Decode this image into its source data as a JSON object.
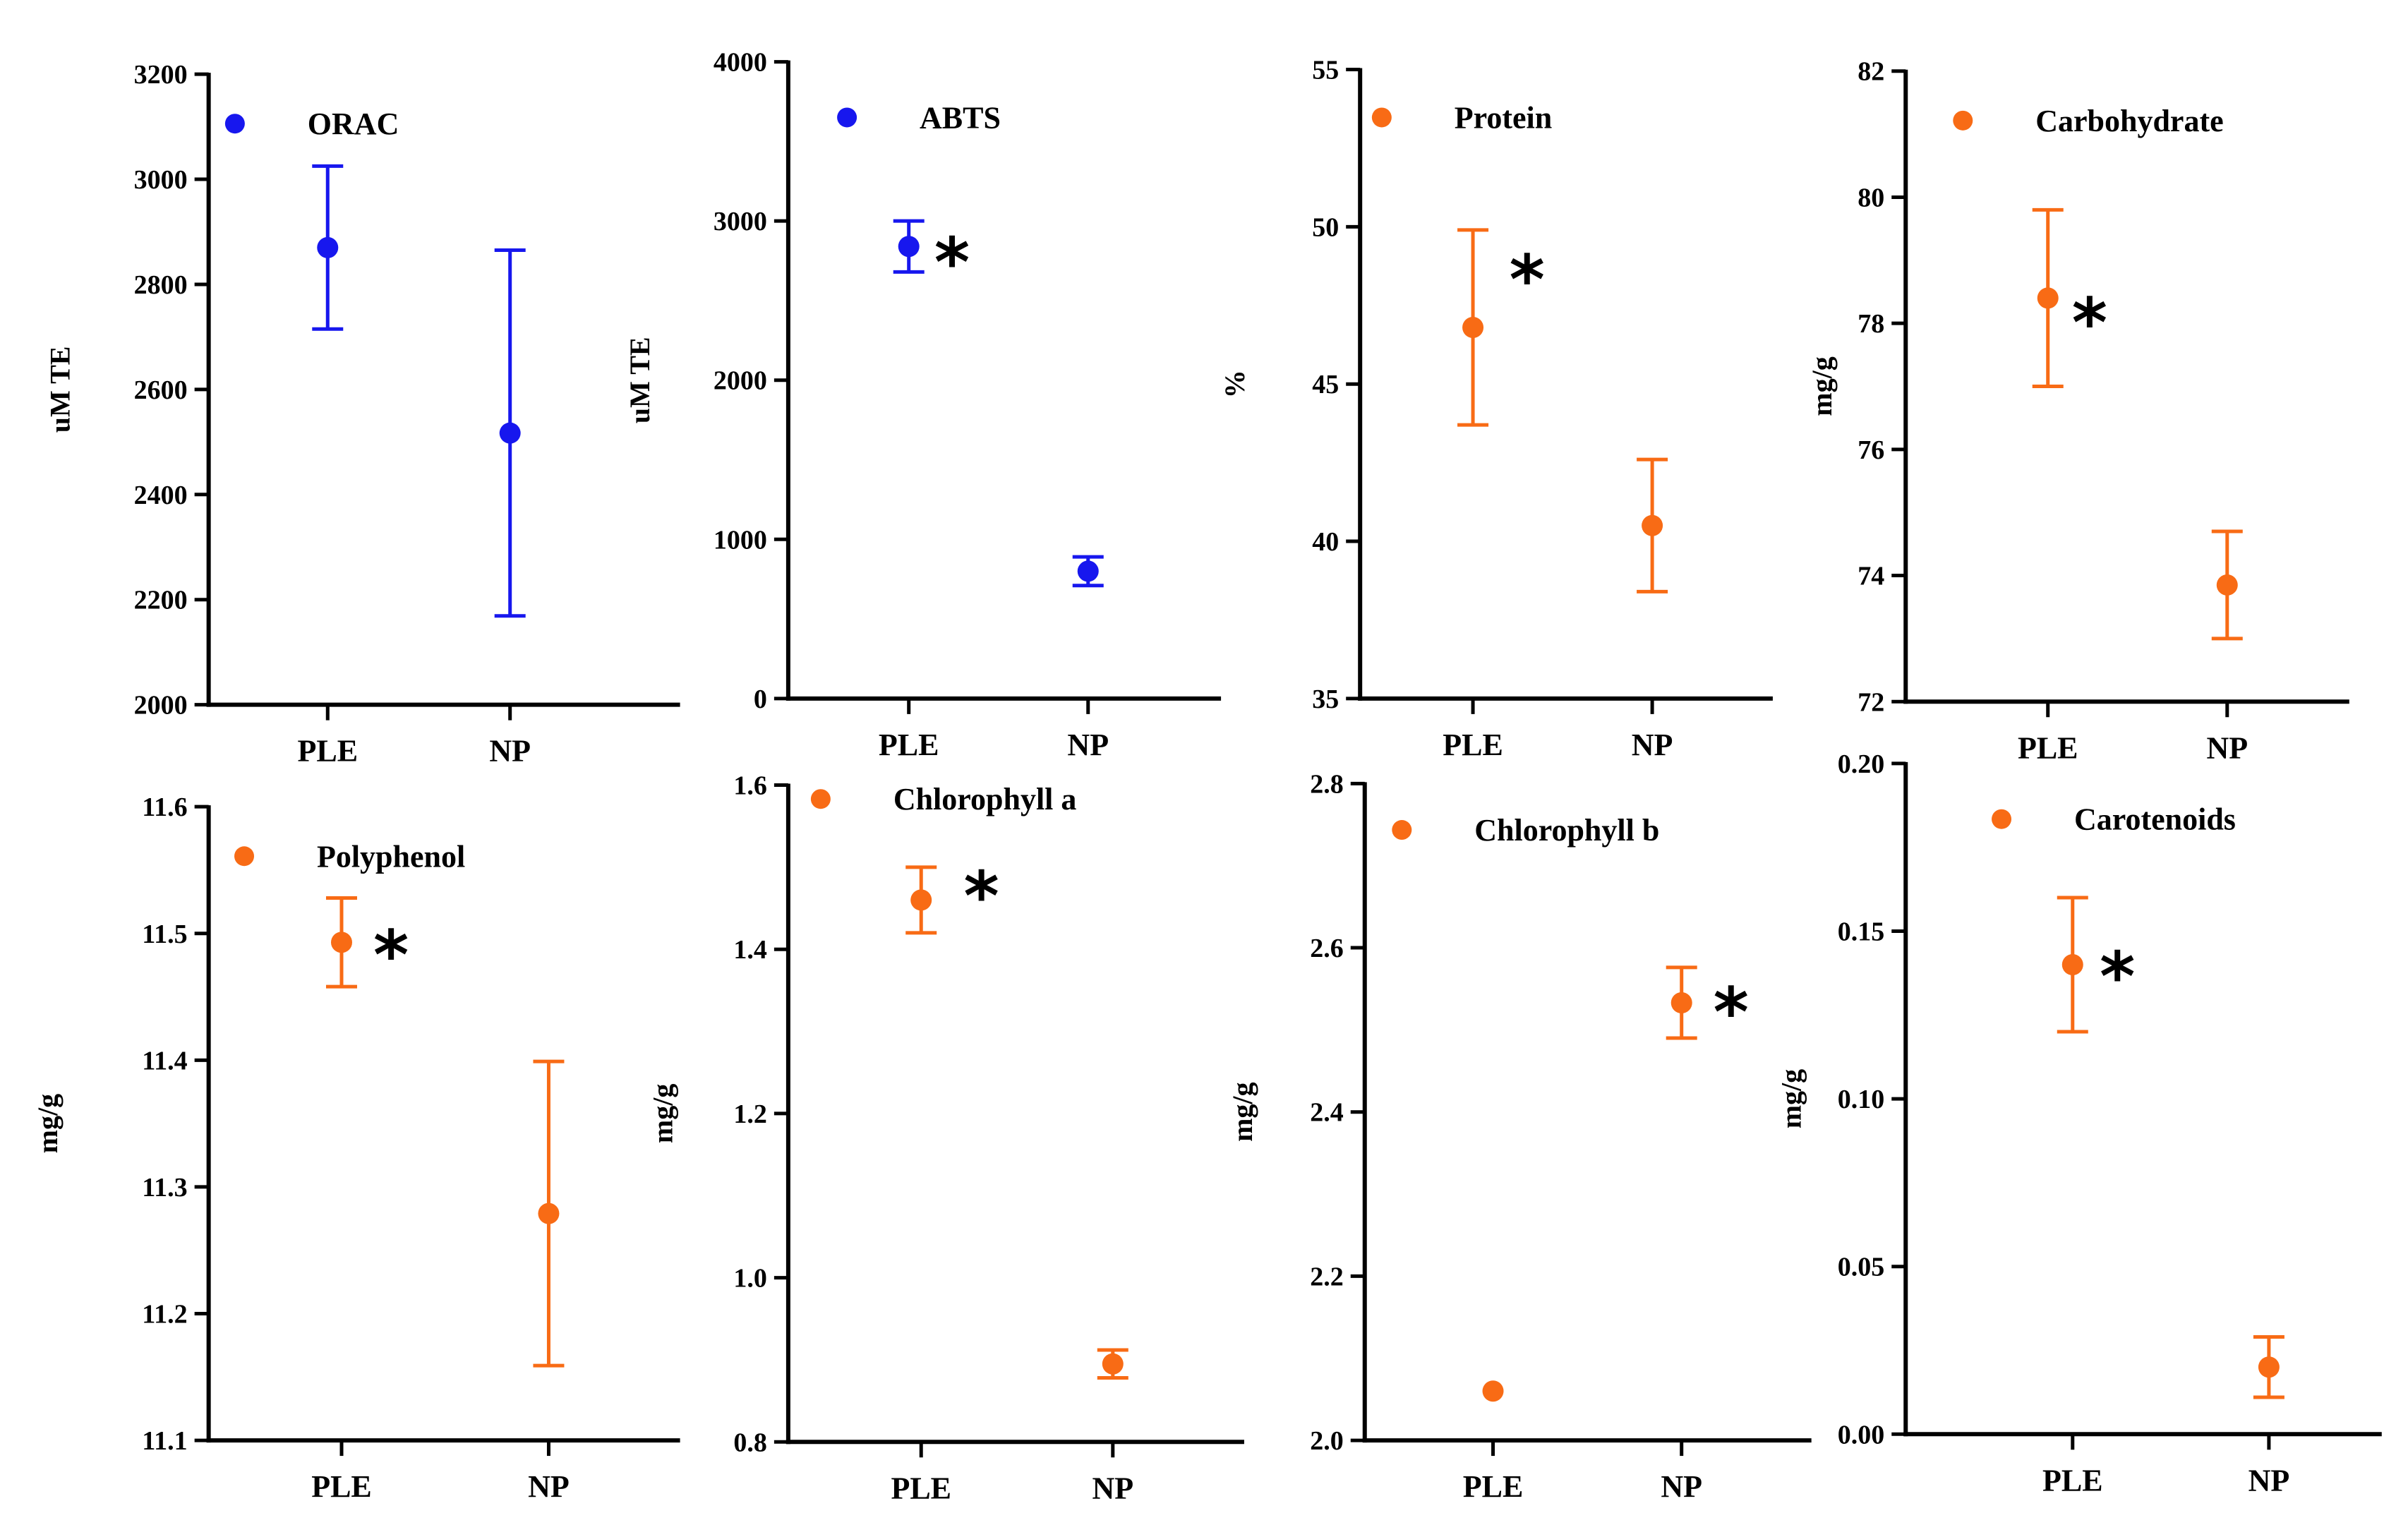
{
  "colors": {
    "blue": "#1717ee",
    "orange": "#f86b15",
    "axis": "#000000"
  },
  "chart_data": [
    {
      "type": "scatter",
      "title": "ORAC",
      "ylabel": "uM TE",
      "color": "blue",
      "ylim": [
        2000,
        3200
      ],
      "yticks": [
        "2000",
        "2200",
        "2400",
        "2600",
        "2800",
        "3000",
        "3200"
      ],
      "categories": [
        "PLE",
        "NP"
      ],
      "series": [
        {
          "name": "ORAC",
          "values": [
            2870,
            2517
          ],
          "errors": [
            155,
            348
          ]
        }
      ],
      "annotations": []
    },
    {
      "type": "scatter",
      "title": "ABTS",
      "ylabel": "uM TE",
      "color": "blue",
      "ylim": [
        0,
        4000
      ],
      "yticks": [
        "0",
        "1000",
        "2000",
        "3000",
        "4000"
      ],
      "categories": [
        "PLE",
        "NP"
      ],
      "series": [
        {
          "name": "ABTS",
          "values": [
            2840,
            800
          ],
          "errors": [
            160,
            90
          ]
        }
      ],
      "annotations": [
        {
          "text": "*",
          "category": "PLE"
        }
      ]
    },
    {
      "type": "scatter",
      "title": "Protein",
      "ylabel": "%",
      "color": "orange",
      "ylim": [
        35,
        55
      ],
      "yticks": [
        "35",
        "40",
        "45",
        "50",
        "55"
      ],
      "categories": [
        "PLE",
        "NP"
      ],
      "series": [
        {
          "name": "Protein",
          "values": [
            46.8,
            40.5
          ],
          "errors": [
            3.1,
            2.1
          ]
        }
      ],
      "annotations": [
        {
          "text": "*",
          "category": "PLE"
        }
      ]
    },
    {
      "type": "scatter",
      "title": "Carbohydrate",
      "ylabel": "mg/g",
      "color": "orange",
      "ylim": [
        72,
        82
      ],
      "yticks": [
        "72",
        "74",
        "76",
        "78",
        "80",
        "82"
      ],
      "categories": [
        "PLE",
        "NP"
      ],
      "series": [
        {
          "name": "Carbohydrate",
          "values": [
            78.4,
            73.85
          ],
          "errors": [
            1.4,
            0.85
          ]
        }
      ],
      "annotations": [
        {
          "text": "*",
          "category": "PLE"
        }
      ]
    },
    {
      "type": "scatter",
      "title": "Polyphenol",
      "ylabel": "mg/g",
      "color": "orange",
      "ylim": [
        11.1,
        11.6
      ],
      "yticks": [
        "11.1",
        "11.2",
        "11.3",
        "11.4",
        "11.5",
        "11.6"
      ],
      "categories": [
        "PLE",
        "NP"
      ],
      "series": [
        {
          "name": "Polyphenol",
          "values": [
            11.493,
            11.279
          ],
          "errors": [
            0.035,
            0.12
          ]
        }
      ],
      "annotations": [
        {
          "text": "*",
          "category": "PLE"
        }
      ]
    },
    {
      "type": "scatter",
      "title": "Chlorophyll a",
      "ylabel": "mg/g",
      "color": "orange",
      "ylim": [
        0.8,
        1.6
      ],
      "yticks": [
        "0.8",
        "1.0",
        "1.2",
        "1.4",
        "1.6"
      ],
      "categories": [
        "PLE",
        "NP"
      ],
      "series": [
        {
          "name": "Chlorophyll a",
          "values": [
            1.46,
            0.895
          ],
          "errors": [
            0.04,
            0.017
          ]
        }
      ],
      "annotations": [
        {
          "text": "*",
          "category": "PLE"
        }
      ]
    },
    {
      "type": "scatter",
      "title": "Chlorophyll b",
      "ylabel": "mg/g",
      "color": "orange",
      "ylim": [
        2.0,
        2.8
      ],
      "yticks": [
        "2.0",
        "2.2",
        "2.4",
        "2.6",
        "2.8"
      ],
      "categories": [
        "PLE",
        "NP"
      ],
      "series": [
        {
          "name": "Chlorophyll b",
          "values": [
            2.06,
            2.533
          ],
          "errors": [
            0,
            0.043
          ]
        }
      ],
      "annotations": [
        {
          "text": "*",
          "category": "NP"
        }
      ]
    },
    {
      "type": "scatter",
      "title": "Carotenoids",
      "ylabel": "mg/g",
      "color": "orange",
      "ylim": [
        0,
        0.2
      ],
      "yticks": [
        "0.00",
        "0.05",
        "0.10",
        "0.15",
        "0.20"
      ],
      "categories": [
        "PLE",
        "NP"
      ],
      "series": [
        {
          "name": "Carotenoids",
          "values": [
            0.14,
            0.02
          ],
          "errors": [
            0.02,
            0.009
          ]
        }
      ],
      "annotations": [
        {
          "text": "*",
          "category": "PLE"
        }
      ]
    }
  ]
}
